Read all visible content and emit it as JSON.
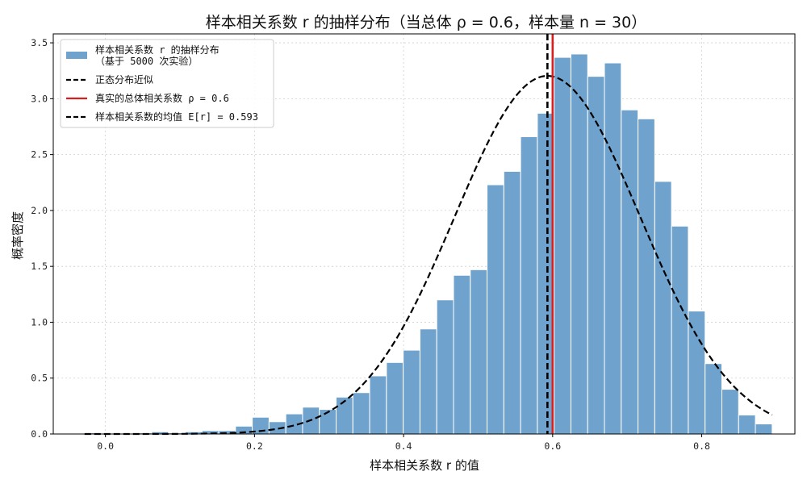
{
  "chart_data": {
    "type": "bar",
    "title": "样本相关系数 r 的抽样分布（当总体 ρ = 0.6，样本量 n = 30）",
    "xlabel": "样本相关系数 r 的值",
    "ylabel": "概率密度",
    "xlim": [
      -0.07,
      0.925
    ],
    "ylim": [
      0,
      3.58
    ],
    "x_ticks": [
      0.0,
      0.2,
      0.4,
      0.6,
      0.8
    ],
    "x_tick_labels": [
      "0.0",
      "0.2",
      "0.4",
      "0.6",
      "0.8"
    ],
    "y_ticks": [
      0.0,
      0.5,
      1.0,
      1.5,
      2.0,
      2.5,
      3.0,
      3.5
    ],
    "y_tick_labels": [
      "0.0",
      "0.5",
      "1.0",
      "1.5",
      "2.0",
      "2.5",
      "3.0",
      "3.5"
    ],
    "grid": true,
    "legend_position": "top-left",
    "histogram": {
      "name": "样本相关系数 r 的抽样分布\n（基于 5000 次实验）",
      "color": "#6fa3cd",
      "edge_color": "#ffffff",
      "bins": [
        {
          "x0": -0.028,
          "x1": -0.0055,
          "value": 0.01
        },
        {
          "x0": -0.0055,
          "x1": 0.017,
          "value": 0.0
        },
        {
          "x0": 0.017,
          "x1": 0.0395,
          "value": 0.0
        },
        {
          "x0": 0.0395,
          "x1": 0.062,
          "value": 0.01
        },
        {
          "x0": 0.062,
          "x1": 0.0845,
          "value": 0.02
        },
        {
          "x0": 0.0845,
          "x1": 0.107,
          "value": 0.01
        },
        {
          "x0": 0.107,
          "x1": 0.1295,
          "value": 0.02
        },
        {
          "x0": 0.1295,
          "x1": 0.152,
          "value": 0.03
        },
        {
          "x0": 0.152,
          "x1": 0.1745,
          "value": 0.03
        },
        {
          "x0": 0.1745,
          "x1": 0.197,
          "value": 0.07
        },
        {
          "x0": 0.197,
          "x1": 0.2195,
          "value": 0.15
        },
        {
          "x0": 0.2195,
          "x1": 0.242,
          "value": 0.11
        },
        {
          "x0": 0.242,
          "x1": 0.2645,
          "value": 0.18
        },
        {
          "x0": 0.2645,
          "x1": 0.287,
          "value": 0.24
        },
        {
          "x0": 0.287,
          "x1": 0.3095,
          "value": 0.22
        },
        {
          "x0": 0.3095,
          "x1": 0.332,
          "value": 0.33
        },
        {
          "x0": 0.332,
          "x1": 0.3545,
          "value": 0.37
        },
        {
          "x0": 0.3545,
          "x1": 0.377,
          "value": 0.52
        },
        {
          "x0": 0.377,
          "x1": 0.3995,
          "value": 0.64
        },
        {
          "x0": 0.3995,
          "x1": 0.422,
          "value": 0.75
        },
        {
          "x0": 0.422,
          "x1": 0.4445,
          "value": 0.94
        },
        {
          "x0": 0.4445,
          "x1": 0.467,
          "value": 1.2
        },
        {
          "x0": 0.467,
          "x1": 0.4895,
          "value": 1.42
        },
        {
          "x0": 0.4895,
          "x1": 0.512,
          "value": 1.47
        },
        {
          "x0": 0.512,
          "x1": 0.5345,
          "value": 2.23
        },
        {
          "x0": 0.5345,
          "x1": 0.557,
          "value": 2.35
        },
        {
          "x0": 0.557,
          "x1": 0.5795,
          "value": 2.66
        },
        {
          "x0": 0.5795,
          "x1": 0.602,
          "value": 2.87
        },
        {
          "x0": 0.602,
          "x1": 0.6245,
          "value": 3.37
        },
        {
          "x0": 0.6245,
          "x1": 0.647,
          "value": 3.4
        },
        {
          "x0": 0.647,
          "x1": 0.6695,
          "value": 3.2
        },
        {
          "x0": 0.6695,
          "x1": 0.692,
          "value": 3.32
        },
        {
          "x0": 0.692,
          "x1": 0.7145,
          "value": 2.9
        },
        {
          "x0": 0.7145,
          "x1": 0.737,
          "value": 2.82
        },
        {
          "x0": 0.737,
          "x1": 0.7595,
          "value": 2.26
        },
        {
          "x0": 0.7595,
          "x1": 0.782,
          "value": 1.86
        },
        {
          "x0": 0.782,
          "x1": 0.8045,
          "value": 1.1
        },
        {
          "x0": 0.8045,
          "x1": 0.827,
          "value": 0.63
        },
        {
          "x0": 0.827,
          "x1": 0.8495,
          "value": 0.4
        },
        {
          "x0": 0.8495,
          "x1": 0.872,
          "value": 0.17
        },
        {
          "x0": 0.872,
          "x1": 0.8945,
          "value": 0.09
        }
      ]
    },
    "normal_curve": {
      "name": "正态分布近似",
      "mean": 0.593,
      "sd": 0.1245,
      "x_range": [
        -0.028,
        0.8945
      ],
      "color": "#000000",
      "style": "dashed"
    },
    "vlines": [
      {
        "name": "真实的总体相关系数 ρ = 0.6",
        "x": 0.6,
        "color": "#d62020",
        "style": "solid"
      },
      {
        "name": "样本相关系数的均值 E[r] = 0.593",
        "x": 0.593,
        "color": "#000000",
        "style": "dashed"
      }
    ]
  }
}
